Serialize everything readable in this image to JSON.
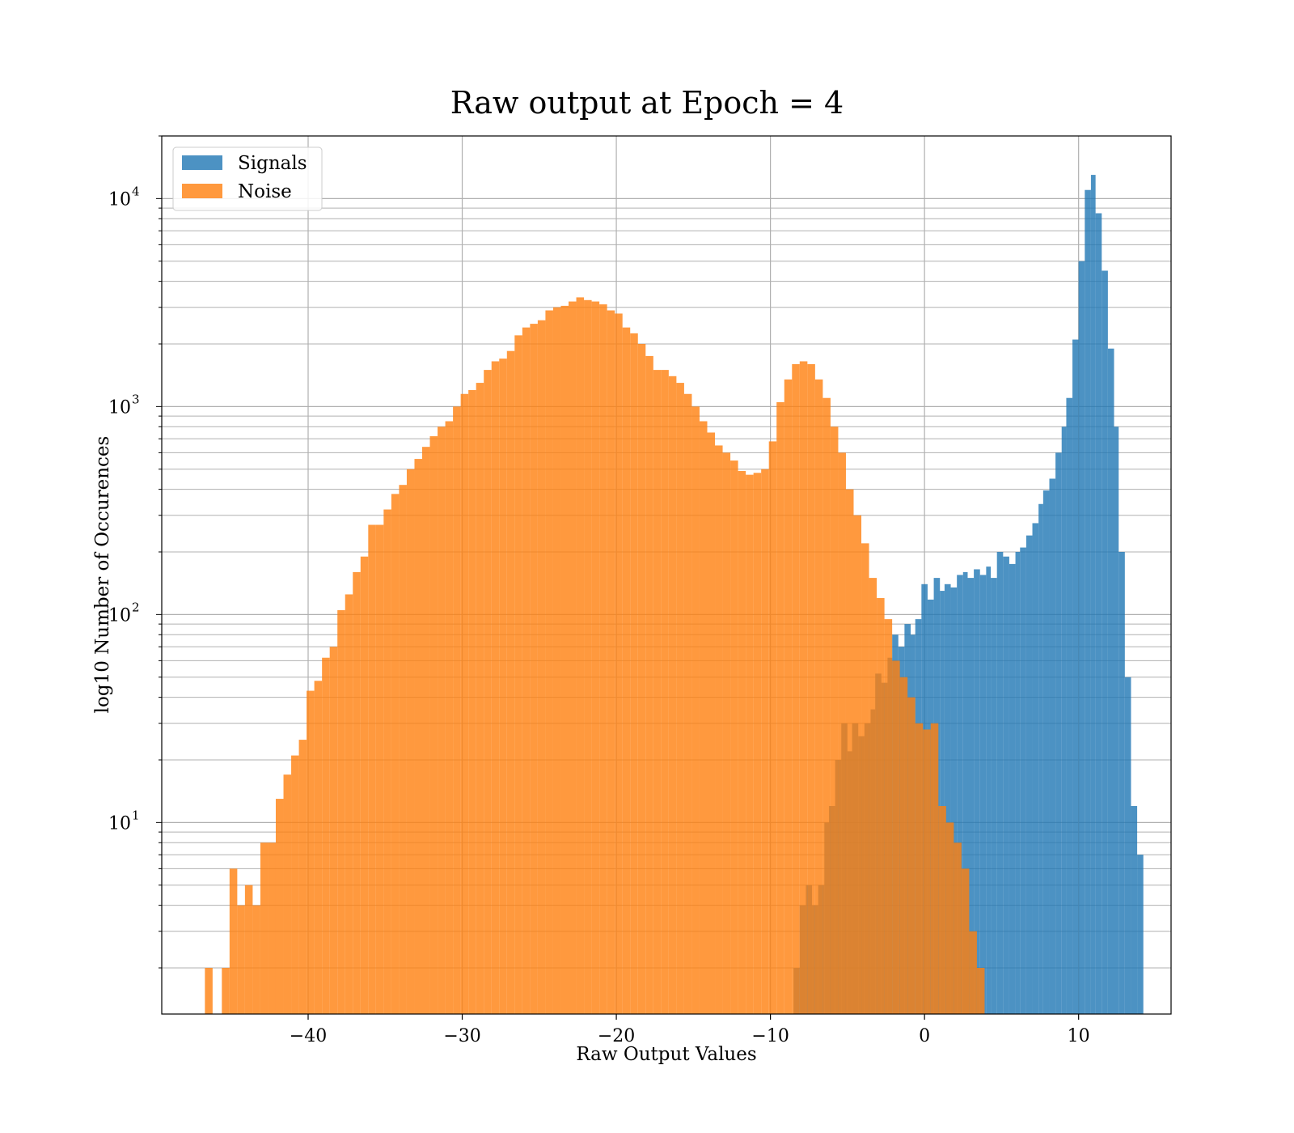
{
  "chart_data": {
    "type": "bar",
    "title": "Raw output at Epoch = 4",
    "xlabel": "Raw Output Values",
    "ylabel": "log10 Number of Occurences",
    "yscale": "log",
    "xlim": [
      -49.5,
      16.0
    ],
    "ylim": [
      1.2,
      20000
    ],
    "grid": true,
    "legend_position": "top-left",
    "x_ticks": [
      -40,
      -30,
      -20,
      -10,
      0,
      10
    ],
    "x_tick_labels": [
      "−40",
      "−30",
      "−20",
      "−10",
      "0",
      "10"
    ],
    "y_ticks": [
      10,
      100,
      1000,
      10000
    ],
    "y_tick_labels": [
      {
        "base": "10",
        "exp": "1"
      },
      {
        "base": "10",
        "exp": "2"
      },
      {
        "base": "10",
        "exp": "3"
      },
      {
        "base": "10",
        "exp": "4"
      }
    ],
    "series": [
      {
        "name": "Signals",
        "color": "#1f77b4",
        "opacity": 0.8,
        "bins": [
          [
            -8.5,
            -8.1,
            2
          ],
          [
            -8.1,
            -7.7,
            4
          ],
          [
            -7.7,
            -7.3,
            5
          ],
          [
            -7.3,
            -6.9,
            4
          ],
          [
            -6.9,
            -6.5,
            5
          ],
          [
            -6.5,
            -6.2,
            10
          ],
          [
            -6.2,
            -5.8,
            12
          ],
          [
            -5.8,
            -5.4,
            20
          ],
          [
            -5.4,
            -5.0,
            30
          ],
          [
            -5.0,
            -4.7,
            22
          ],
          [
            -4.7,
            -4.3,
            30
          ],
          [
            -4.3,
            -3.9,
            26
          ],
          [
            -3.9,
            -3.5,
            30
          ],
          [
            -3.5,
            -3.2,
            35
          ],
          [
            -3.2,
            -2.8,
            52
          ],
          [
            -2.8,
            -2.4,
            47
          ],
          [
            -2.4,
            -2.1,
            62
          ],
          [
            -2.1,
            -1.7,
            80
          ],
          [
            -1.7,
            -1.3,
            70
          ],
          [
            -1.3,
            -0.9,
            90
          ],
          [
            -0.9,
            -0.6,
            80
          ],
          [
            -0.6,
            -0.2,
            95
          ],
          [
            -0.2,
            0.2,
            140
          ],
          [
            0.2,
            0.6,
            118
          ],
          [
            0.6,
            1.0,
            150
          ],
          [
            1.0,
            1.3,
            130
          ],
          [
            1.3,
            1.7,
            140
          ],
          [
            1.7,
            2.1,
            135
          ],
          [
            2.1,
            2.5,
            155
          ],
          [
            2.5,
            2.8,
            160
          ],
          [
            2.8,
            3.2,
            150
          ],
          [
            3.2,
            3.6,
            165
          ],
          [
            3.6,
            4.0,
            155
          ],
          [
            4.0,
            4.3,
            170
          ],
          [
            4.3,
            4.7,
            150
          ],
          [
            4.7,
            5.1,
            200
          ],
          [
            5.1,
            5.5,
            190
          ],
          [
            5.5,
            5.9,
            175
          ],
          [
            5.9,
            6.2,
            200
          ],
          [
            6.2,
            6.6,
            210
          ],
          [
            6.6,
            7.0,
            240
          ],
          [
            7.0,
            7.4,
            275
          ],
          [
            7.4,
            7.7,
            340
          ],
          [
            7.7,
            8.1,
            395
          ],
          [
            8.1,
            8.5,
            450
          ],
          [
            8.5,
            8.9,
            600
          ],
          [
            8.9,
            9.2,
            800
          ],
          [
            9.2,
            9.6,
            1100
          ],
          [
            9.6,
            10.0,
            2100
          ],
          [
            10.0,
            10.4,
            5000
          ],
          [
            10.4,
            10.8,
            11000
          ],
          [
            10.8,
            11.1,
            13000
          ],
          [
            11.1,
            11.5,
            8500
          ],
          [
            11.5,
            11.9,
            4500
          ],
          [
            11.9,
            12.3,
            1900
          ],
          [
            12.3,
            12.6,
            800
          ],
          [
            12.6,
            13.0,
            200
          ],
          [
            13.0,
            13.4,
            50
          ],
          [
            13.4,
            13.8,
            12
          ],
          [
            13.8,
            14.2,
            7
          ]
        ]
      },
      {
        "name": "Noise",
        "color": "#ff7f0e",
        "opacity": 0.8,
        "bins": [
          [
            -46.7,
            -46.2,
            2
          ],
          [
            -45.6,
            -45.1,
            2
          ],
          [
            -45.1,
            -44.6,
            6
          ],
          [
            -44.6,
            -44.1,
            4
          ],
          [
            -44.1,
            -43.6,
            5
          ],
          [
            -43.6,
            -43.1,
            4
          ],
          [
            -43.1,
            -42.6,
            8
          ],
          [
            -42.6,
            -42.1,
            8
          ],
          [
            -42.1,
            -41.6,
            13
          ],
          [
            -41.6,
            -41.1,
            17
          ],
          [
            -41.1,
            -40.6,
            21
          ],
          [
            -40.6,
            -40.1,
            25
          ],
          [
            -40.1,
            -39.6,
            43
          ],
          [
            -39.6,
            -39.1,
            48
          ],
          [
            -39.1,
            -38.6,
            62
          ],
          [
            -38.6,
            -38.1,
            70
          ],
          [
            -38.1,
            -37.6,
            105
          ],
          [
            -37.6,
            -37.1,
            125
          ],
          [
            -37.1,
            -36.6,
            160
          ],
          [
            -36.6,
            -36.1,
            190
          ],
          [
            -36.1,
            -35.6,
            270
          ],
          [
            -35.6,
            -35.1,
            270
          ],
          [
            -35.1,
            -34.6,
            320
          ],
          [
            -34.6,
            -34.1,
            380
          ],
          [
            -34.1,
            -33.6,
            420
          ],
          [
            -33.6,
            -33.1,
            500
          ],
          [
            -33.1,
            -32.6,
            560
          ],
          [
            -32.6,
            -32.1,
            640
          ],
          [
            -32.1,
            -31.6,
            720
          ],
          [
            -31.6,
            -31.1,
            800
          ],
          [
            -31.1,
            -30.6,
            850
          ],
          [
            -30.6,
            -30.1,
            1000
          ],
          [
            -30.1,
            -29.6,
            1150
          ],
          [
            -29.6,
            -29.1,
            1200
          ],
          [
            -29.1,
            -28.6,
            1300
          ],
          [
            -28.6,
            -28.1,
            1500
          ],
          [
            -28.1,
            -27.6,
            1650
          ],
          [
            -27.6,
            -27.1,
            1700
          ],
          [
            -27.1,
            -26.6,
            1850
          ],
          [
            -26.6,
            -26.1,
            2200
          ],
          [
            -26.1,
            -25.6,
            2400
          ],
          [
            -25.6,
            -25.1,
            2500
          ],
          [
            -25.1,
            -24.6,
            2600
          ],
          [
            -24.6,
            -24.1,
            2900
          ],
          [
            -24.1,
            -23.6,
            3000
          ],
          [
            -23.6,
            -23.1,
            3050
          ],
          [
            -23.1,
            -22.6,
            3200
          ],
          [
            -22.6,
            -22.1,
            3350
          ],
          [
            -22.1,
            -21.6,
            3250
          ],
          [
            -21.6,
            -21.1,
            3200
          ],
          [
            -21.1,
            -20.6,
            3100
          ],
          [
            -20.6,
            -20.1,
            2900
          ],
          [
            -20.1,
            -19.6,
            2800
          ],
          [
            -19.6,
            -19.1,
            2400
          ],
          [
            -19.1,
            -18.6,
            2250
          ],
          [
            -18.6,
            -18.1,
            2000
          ],
          [
            -18.1,
            -17.6,
            1750
          ],
          [
            -17.6,
            -17.1,
            1500
          ],
          [
            -17.1,
            -16.6,
            1500
          ],
          [
            -16.6,
            -16.1,
            1400
          ],
          [
            -16.1,
            -15.6,
            1300
          ],
          [
            -15.6,
            -15.1,
            1150
          ],
          [
            -15.1,
            -14.6,
            1000
          ],
          [
            -14.6,
            -14.1,
            850
          ],
          [
            -14.1,
            -13.6,
            750
          ],
          [
            -13.6,
            -13.1,
            650
          ],
          [
            -13.1,
            -12.6,
            600
          ],
          [
            -12.6,
            -12.1,
            550
          ],
          [
            -12.1,
            -11.6,
            490
          ],
          [
            -11.6,
            -11.1,
            470
          ],
          [
            -11.1,
            -10.6,
            480
          ],
          [
            -10.6,
            -10.1,
            500
          ],
          [
            -10.1,
            -9.6,
            680
          ],
          [
            -9.6,
            -9.1,
            1050
          ],
          [
            -9.1,
            -8.6,
            1350
          ],
          [
            -8.6,
            -8.1,
            1600
          ],
          [
            -8.1,
            -7.6,
            1650
          ],
          [
            -7.6,
            -7.1,
            1600
          ],
          [
            -7.1,
            -6.6,
            1350
          ],
          [
            -6.6,
            -6.1,
            1100
          ],
          [
            -6.1,
            -5.6,
            800
          ],
          [
            -5.6,
            -5.1,
            600
          ],
          [
            -5.1,
            -4.6,
            400
          ],
          [
            -4.6,
            -4.1,
            300
          ],
          [
            -4.1,
            -3.6,
            220
          ],
          [
            -3.6,
            -3.1,
            150
          ],
          [
            -3.1,
            -2.6,
            120
          ],
          [
            -2.6,
            -2.1,
            95
          ],
          [
            -2.1,
            -1.6,
            60
          ],
          [
            -1.6,
            -1.1,
            50
          ],
          [
            -1.1,
            -0.6,
            40
          ],
          [
            -0.6,
            -0.1,
            30
          ],
          [
            -0.1,
            0.4,
            28
          ],
          [
            0.4,
            0.9,
            30
          ],
          [
            0.9,
            1.4,
            12
          ],
          [
            1.4,
            1.9,
            10
          ],
          [
            1.9,
            2.4,
            8
          ],
          [
            2.4,
            2.9,
            6
          ],
          [
            2.9,
            3.4,
            3
          ],
          [
            3.4,
            3.9,
            2
          ]
        ]
      }
    ]
  }
}
